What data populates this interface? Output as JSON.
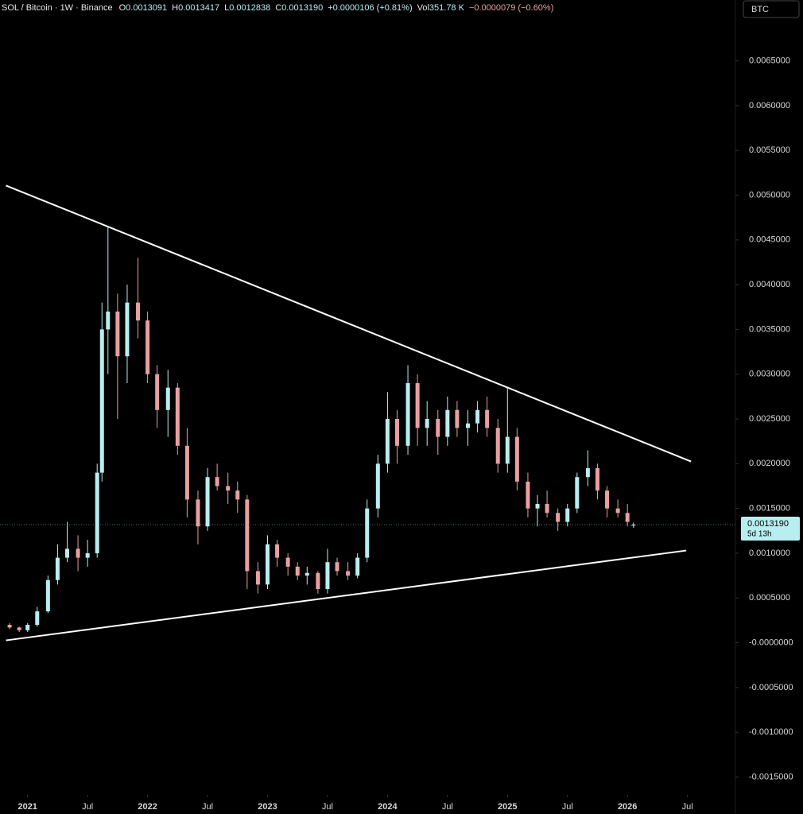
{
  "chart_data": {
    "type": "candlestick",
    "title": "SOL / Bitcoin · 1W · Binance",
    "ohlc_readout": [
      {
        "label": "O",
        "value": "0.0013091"
      },
      {
        "label": "H",
        "value": "0.0013417"
      },
      {
        "label": "L",
        "value": "0.0012838"
      },
      {
        "label": "C",
        "value": "0.0013190"
      }
    ],
    "change": "+0.0000106 (+0.81%)",
    "volume_label": "Vol",
    "volume": "351.78 K",
    "volume_change": "−0.0000079 (−0.60%)",
    "currency": "BTC",
    "up_color": "#b8eef0",
    "down_color": "#e8a0a0",
    "x": [
      2020.85,
      2020.93,
      2021.0,
      2021.08,
      2021.17,
      2021.25,
      2021.33,
      2021.42,
      2021.5,
      2021.58,
      2021.62,
      2021.67,
      2021.75,
      2021.83,
      2021.92,
      2022.0,
      2022.08,
      2022.17,
      2022.25,
      2022.33,
      2022.42,
      2022.5,
      2022.58,
      2022.67,
      2022.75,
      2022.83,
      2022.92,
      2023.0,
      2023.08,
      2023.17,
      2023.25,
      2023.33,
      2023.42,
      2023.5,
      2023.58,
      2023.67,
      2023.75,
      2023.83,
      2023.92,
      2024.0,
      2024.08,
      2024.17,
      2024.25,
      2024.33,
      2024.42,
      2024.5,
      2024.58,
      2024.67,
      2024.75,
      2024.83,
      2024.92,
      2025.0,
      2025.08,
      2025.17,
      2025.25,
      2025.33,
      2025.42,
      2025.5,
      2025.58,
      2025.67,
      2025.75,
      2025.83,
      2025.92,
      2026.0,
      2026.05
    ],
    "open": [
      0.0002,
      0.00017,
      0.00014,
      0.0002,
      0.00035,
      0.0007,
      0.00095,
      0.00105,
      0.00095,
      0.001,
      0.0019,
      0.0035,
      0.0037,
      0.0032,
      0.0038,
      0.0036,
      0.003,
      0.0026,
      0.00285,
      0.0022,
      0.0016,
      0.0013,
      0.00185,
      0.00175,
      0.0017,
      0.0016,
      0.0008,
      0.00065,
      0.0011,
      0.00095,
      0.00085,
      0.00075,
      0.00078,
      0.0006,
      0.0009,
      0.0008,
      0.00075,
      0.00095,
      0.0015,
      0.002,
      0.0025,
      0.0022,
      0.0029,
      0.0024,
      0.0025,
      0.0023,
      0.0026,
      0.0024,
      0.00245,
      0.0026,
      0.0024,
      0.002,
      0.0023,
      0.0018,
      0.0015,
      0.00155,
      0.00145,
      0.00135,
      0.0015,
      0.00185,
      0.00195,
      0.0017,
      0.0015,
      0.00145,
      0.0013091
    ],
    "high": [
      0.00022,
      0.00018,
      0.00022,
      0.0004,
      0.00075,
      0.0011,
      0.00135,
      0.0012,
      0.00115,
      0.002,
      0.0038,
      0.00465,
      0.0039,
      0.004,
      0.0043,
      0.0037,
      0.0031,
      0.00305,
      0.0029,
      0.0024,
      0.0017,
      0.00195,
      0.002,
      0.0019,
      0.0018,
      0.00165,
      0.0009,
      0.0012,
      0.00115,
      0.001,
      0.0009,
      0.00085,
      0.0008,
      0.00105,
      0.00095,
      0.0009,
      0.001,
      0.0016,
      0.0021,
      0.0028,
      0.0026,
      0.0031,
      0.003,
      0.0027,
      0.0026,
      0.00275,
      0.0027,
      0.0026,
      0.0027,
      0.00275,
      0.0025,
      0.00285,
      0.0024,
      0.0019,
      0.00165,
      0.0017,
      0.0015,
      0.00155,
      0.0019,
      0.00215,
      0.002,
      0.00175,
      0.0016,
      0.00155,
      0.0013417
    ],
    "low": [
      0.00015,
      0.00012,
      0.00012,
      0.00018,
      0.00033,
      0.00065,
      0.0009,
      0.0008,
      0.00085,
      0.00095,
      0.0018,
      0.003,
      0.0025,
      0.0029,
      0.0034,
      0.0029,
      0.0024,
      0.0023,
      0.0021,
      0.0014,
      0.0011,
      0.00125,
      0.0017,
      0.00155,
      0.00145,
      0.0006,
      0.00055,
      0.0006,
      0.00085,
      0.00075,
      0.0007,
      0.00065,
      0.00055,
      0.00055,
      0.00075,
      0.0007,
      0.00072,
      0.0009,
      0.0014,
      0.0019,
      0.002,
      0.0021,
      0.0022,
      0.0022,
      0.0021,
      0.0022,
      0.0023,
      0.0022,
      0.00235,
      0.0023,
      0.0019,
      0.0019,
      0.0017,
      0.0014,
      0.0013,
      0.0014,
      0.00125,
      0.0013,
      0.00145,
      0.00175,
      0.0016,
      0.0014,
      0.0014,
      0.0013,
      0.0012838
    ],
    "close": [
      0.00017,
      0.00014,
      0.0002,
      0.00035,
      0.0007,
      0.00095,
      0.00105,
      0.00095,
      0.001,
      0.0019,
      0.0035,
      0.0037,
      0.0032,
      0.0038,
      0.0036,
      0.003,
      0.0026,
      0.00285,
      0.0022,
      0.0016,
      0.0013,
      0.00185,
      0.00175,
      0.0017,
      0.0016,
      0.0008,
      0.00065,
      0.0011,
      0.00095,
      0.00085,
      0.00075,
      0.00078,
      0.0006,
      0.0009,
      0.0008,
      0.00075,
      0.00095,
      0.0015,
      0.002,
      0.0025,
      0.0022,
      0.0029,
      0.0024,
      0.0025,
      0.0023,
      0.0026,
      0.0024,
      0.00245,
      0.0026,
      0.0024,
      0.002,
      0.0023,
      0.0018,
      0.0015,
      0.00155,
      0.00145,
      0.00135,
      0.0015,
      0.00185,
      0.00195,
      0.0017,
      0.0015,
      0.00145,
      0.00135,
      0.001319
    ],
    "trendlines": [
      {
        "x": [
          2020.82,
          2026.53
        ],
        "y": [
          0.005107,
          0.002025
        ],
        "color": "#ffffff"
      },
      {
        "x": [
          2020.82,
          2026.49
        ],
        "y": [
          2.66e-05,
          0.00103
        ],
        "color": "#ffffff"
      }
    ],
    "last_price": {
      "value": 0.001319,
      "label": "0.0013190"
    },
    "countdown": "5d 13h",
    "xlim": [
      2020.77,
      2026.9
    ],
    "ylim": [
      -0.0017,
      0.00718
    ],
    "xticks": [
      {
        "value": 2021.0,
        "label": "2021"
      },
      {
        "value": 2021.5,
        "label": "Jul"
      },
      {
        "value": 2022.0,
        "label": "2022"
      },
      {
        "value": 2022.5,
        "label": "Jul"
      },
      {
        "value": 2023.0,
        "label": "2023"
      },
      {
        "value": 2023.5,
        "label": "Jul"
      },
      {
        "value": 2024.0,
        "label": "2024"
      },
      {
        "value": 2024.5,
        "label": "Jul"
      },
      {
        "value": 2025.0,
        "label": "2025"
      },
      {
        "value": 2025.5,
        "label": "Jul"
      },
      {
        "value": 2026.0,
        "label": "2026"
      },
      {
        "value": 2026.5,
        "label": "Jul"
      }
    ],
    "yticks": [
      {
        "value": 0.0065,
        "label": "0.0065000"
      },
      {
        "value": 0.006,
        "label": "0.0060000"
      },
      {
        "value": 0.0055,
        "label": "0.0055000"
      },
      {
        "value": 0.005,
        "label": "0.0050000"
      },
      {
        "value": 0.0045,
        "label": "0.0045000"
      },
      {
        "value": 0.004,
        "label": "0.0040000"
      },
      {
        "value": 0.0035,
        "label": "0.0035000"
      },
      {
        "value": 0.003,
        "label": "0.0030000"
      },
      {
        "value": 0.0025,
        "label": "0.0025000"
      },
      {
        "value": 0.002,
        "label": "0.0020000"
      },
      {
        "value": 0.0015,
        "label": "0.0015000"
      },
      {
        "value": 0.001,
        "label": "0.0010000"
      },
      {
        "value": 0.0005,
        "label": "0.0005000"
      },
      {
        "value": 0,
        "label": "-0.0000000"
      },
      {
        "value": -0.0005,
        "label": "-0.0005000"
      },
      {
        "value": -0.001,
        "label": "-0.0010000"
      },
      {
        "value": -0.0015,
        "label": "-0.0015000"
      }
    ]
  }
}
